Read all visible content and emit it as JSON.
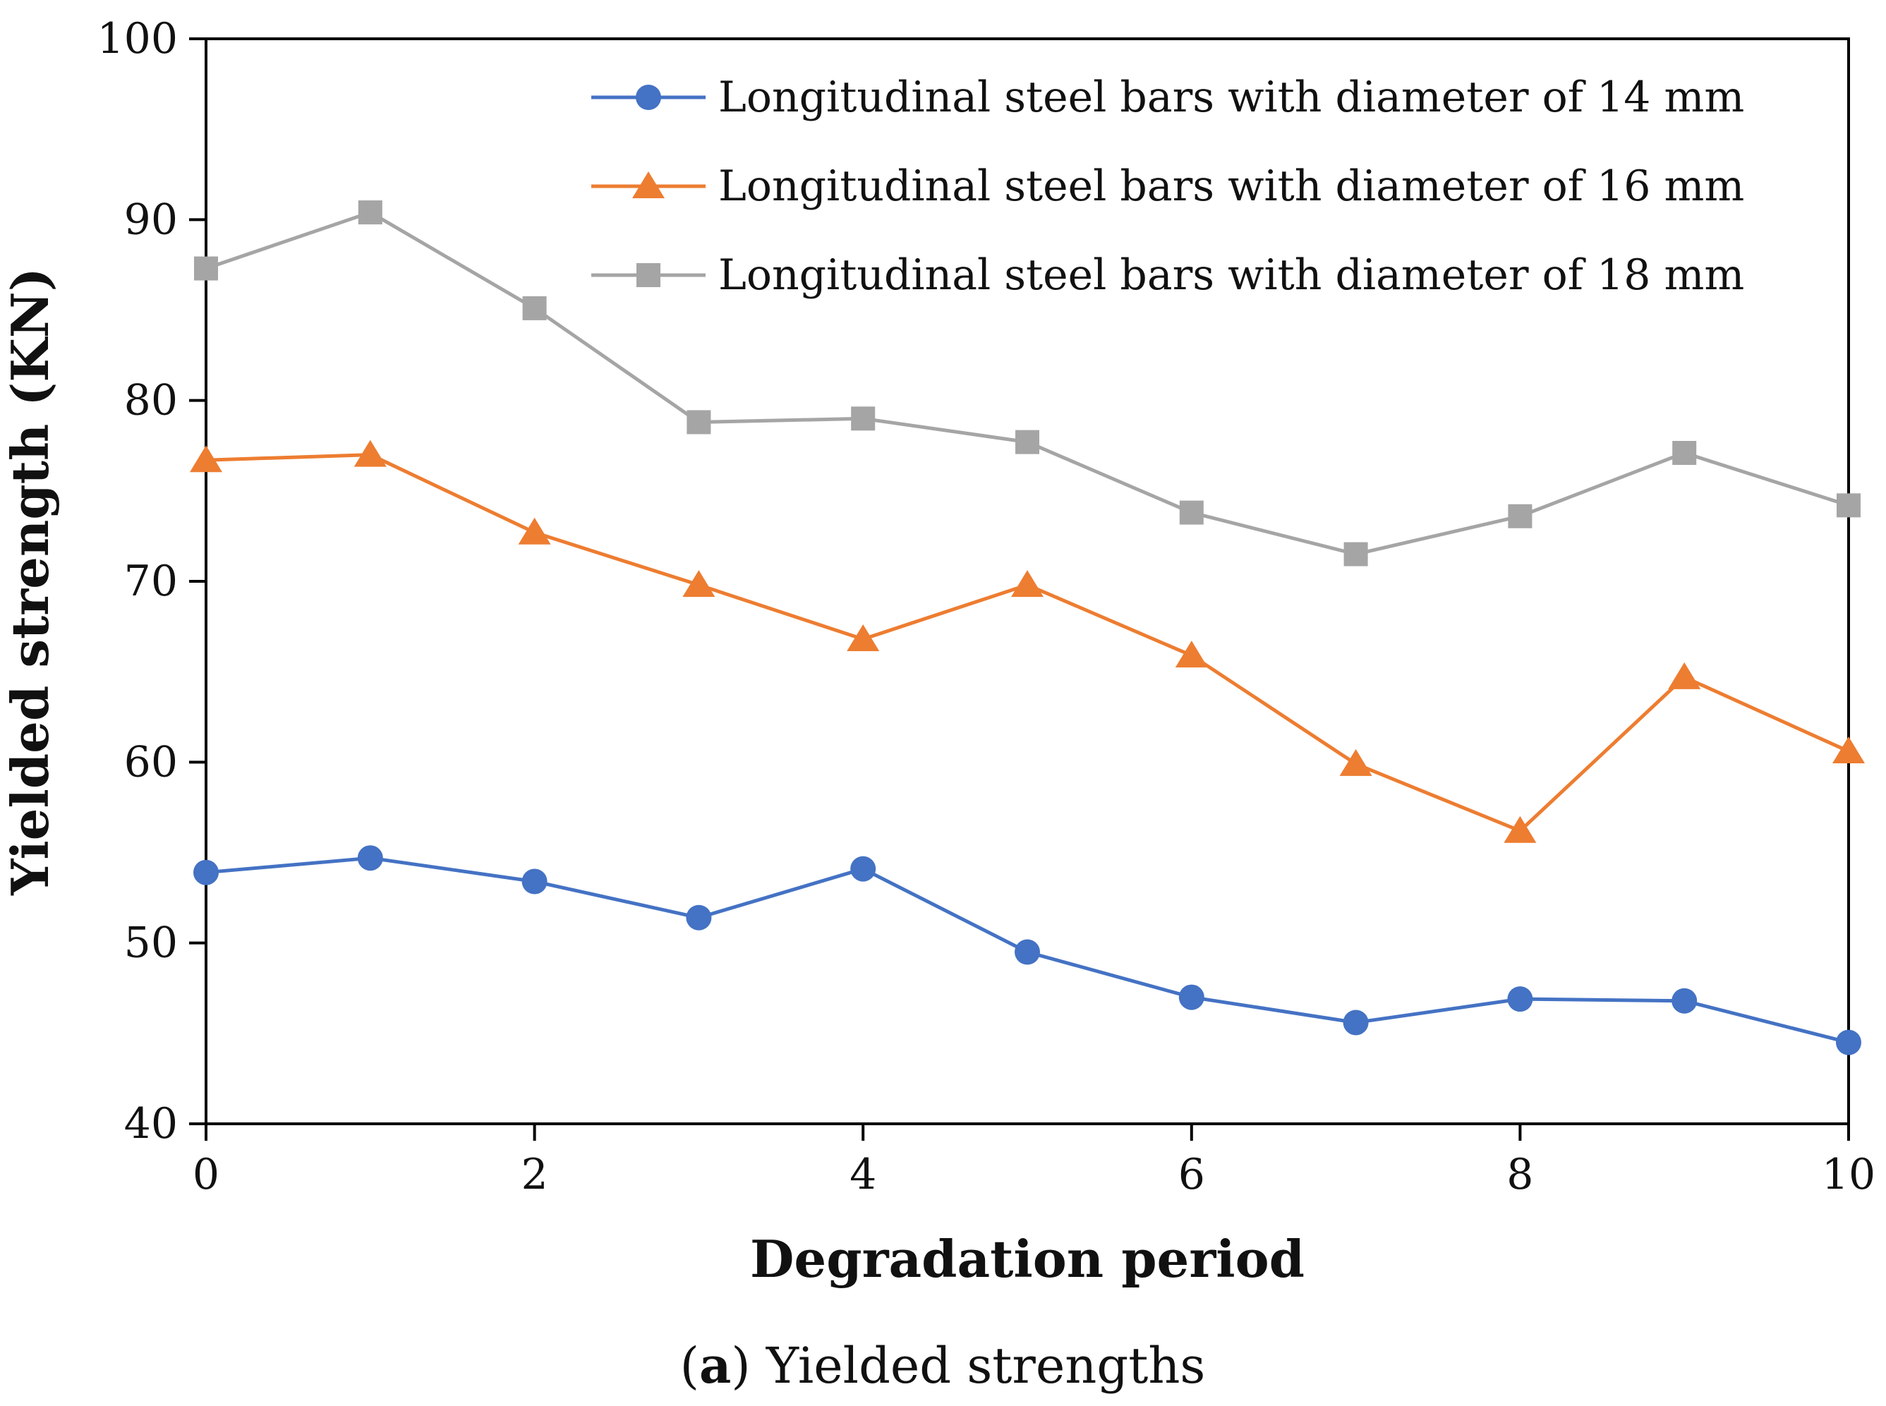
{
  "chart_data": {
    "type": "line",
    "title": "",
    "xlabel": "Degradation period",
    "ylabel": "Yielded strength (KN)",
    "xlim": [
      0,
      10
    ],
    "ylim": [
      40,
      100
    ],
    "x_ticks": [
      0,
      2,
      4,
      6,
      8,
      10
    ],
    "y_ticks": [
      40,
      50,
      60,
      70,
      80,
      90,
      100
    ],
    "grid": false,
    "legend_position": "top-right",
    "x": [
      0,
      1,
      2,
      3,
      4,
      5,
      6,
      7,
      8,
      9,
      10
    ],
    "series": [
      {
        "name": "Longitudinal steel bars with diameter of 14 mm",
        "marker": "circle",
        "color": "#4472C4",
        "values": [
          53.9,
          54.7,
          53.4,
          51.4,
          54.1,
          49.5,
          47.0,
          45.6,
          46.9,
          46.8,
          44.5
        ]
      },
      {
        "name": "Longitudinal steel bars with diameter of 16 mm",
        "marker": "triangle",
        "color": "#ED7D31",
        "values": [
          76.7,
          77.0,
          72.7,
          69.8,
          66.8,
          69.8,
          65.9,
          59.9,
          56.2,
          64.7,
          60.6
        ]
      },
      {
        "name": "Longitudinal steel bars with diameter of 18 mm",
        "marker": "square",
        "color": "#A5A5A5",
        "values": [
          87.3,
          90.4,
          85.1,
          78.8,
          79.0,
          77.7,
          73.8,
          71.5,
          73.6,
          77.1,
          74.2
        ]
      }
    ],
    "caption_prefix": "(",
    "caption_bold": "a",
    "caption_rest": ") Yielded strengths"
  }
}
